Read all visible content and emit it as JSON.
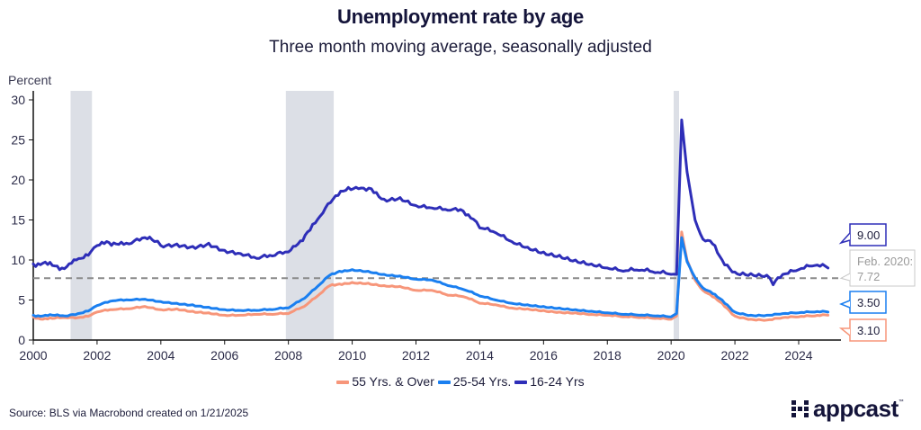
{
  "chart_data": {
    "type": "line",
    "title": "Unemployment rate by age",
    "subtitle": "Three month moving average, seasonally adjusted",
    "ylabel": "Percent",
    "xlabel": "",
    "xlim": [
      2000,
      2025
    ],
    "ylim": [
      0,
      30
    ],
    "x_ticks": [
      "2000",
      "2002",
      "2004",
      "2006",
      "2008",
      "2010",
      "2012",
      "2014",
      "2016",
      "2018",
      "2020",
      "2022",
      "2024"
    ],
    "y_ticks": [
      "0",
      "5",
      "10",
      "15",
      "20",
      "25",
      "30"
    ],
    "grid": false,
    "legend_position": "bottom-center",
    "recessions": [
      [
        2001.17,
        2001.84
      ],
      [
        2007.92,
        2009.42
      ],
      [
        2020.08,
        2020.25
      ]
    ],
    "reference_line": {
      "value": 7.72,
      "label_line1": "Feb. 2020:",
      "label_line2": "7.72",
      "color": "#8a8a8a"
    },
    "series": [
      {
        "name": "55 Yrs. & Over",
        "color": "#f7967a",
        "last_value_label": "3.10",
        "points": [
          [
            2000,
            2.9
          ],
          [
            2000.3,
            2.6
          ],
          [
            2000.6,
            2.7
          ],
          [
            2001,
            2.8
          ],
          [
            2001.4,
            2.8
          ],
          [
            2001.8,
            3.1
          ],
          [
            2002,
            3.5
          ],
          [
            2002.5,
            3.8
          ],
          [
            2003,
            3.9
          ],
          [
            2003.5,
            4.2
          ],
          [
            2004,
            3.8
          ],
          [
            2004.5,
            3.9
          ],
          [
            2005,
            3.6
          ],
          [
            2005.5,
            3.4
          ],
          [
            2006,
            3.1
          ],
          [
            2006.5,
            3.1
          ],
          [
            2007,
            3.2
          ],
          [
            2007.5,
            3.2
          ],
          [
            2008,
            3.3
          ],
          [
            2008.5,
            4.2
          ],
          [
            2009,
            5.8
          ],
          [
            2009.3,
            6.8
          ],
          [
            2009.6,
            7.0
          ],
          [
            2010,
            7.2
          ],
          [
            2010.5,
            7.1
          ],
          [
            2011,
            6.8
          ],
          [
            2011.5,
            6.7
          ],
          [
            2012,
            6.2
          ],
          [
            2012.5,
            6.2
          ],
          [
            2013,
            5.6
          ],
          [
            2013.5,
            5.4
          ],
          [
            2014,
            4.6
          ],
          [
            2014.5,
            4.4
          ],
          [
            2015,
            4.0
          ],
          [
            2015.5,
            3.9
          ],
          [
            2016,
            3.7
          ],
          [
            2016.5,
            3.5
          ],
          [
            2017,
            3.4
          ],
          [
            2017.5,
            3.2
          ],
          [
            2018,
            3.1
          ],
          [
            2018.5,
            2.9
          ],
          [
            2019,
            2.8
          ],
          [
            2019.5,
            2.7
          ],
          [
            2020,
            2.6
          ],
          [
            2020.17,
            3.0
          ],
          [
            2020.33,
            13.5
          ],
          [
            2020.5,
            10.0
          ],
          [
            2020.75,
            7.5
          ],
          [
            2021,
            6.2
          ],
          [
            2021.3,
            5.4
          ],
          [
            2021.6,
            4.6
          ],
          [
            2022,
            3.0
          ],
          [
            2022.5,
            2.6
          ],
          [
            2023,
            2.5
          ],
          [
            2023.5,
            2.8
          ],
          [
            2024,
            2.9
          ],
          [
            2024.5,
            3.0
          ],
          [
            2024.92,
            3.1
          ]
        ]
      },
      {
        "name": "25-54 Yrs.",
        "color": "#1a7ff0",
        "last_value_label": "3.50",
        "points": [
          [
            2000,
            3.1
          ],
          [
            2000.3,
            3.0
          ],
          [
            2000.6,
            3.1
          ],
          [
            2001,
            3.0
          ],
          [
            2001.4,
            3.3
          ],
          [
            2001.8,
            3.8
          ],
          [
            2002,
            4.3
          ],
          [
            2002.5,
            4.9
          ],
          [
            2003,
            5.0
          ],
          [
            2003.5,
            5.1
          ],
          [
            2004,
            4.8
          ],
          [
            2004.5,
            4.6
          ],
          [
            2005,
            4.4
          ],
          [
            2005.5,
            4.1
          ],
          [
            2006,
            3.8
          ],
          [
            2006.5,
            3.7
          ],
          [
            2007,
            3.7
          ],
          [
            2007.5,
            3.8
          ],
          [
            2008,
            4.0
          ],
          [
            2008.5,
            5.2
          ],
          [
            2009,
            7.0
          ],
          [
            2009.3,
            8.1
          ],
          [
            2009.6,
            8.6
          ],
          [
            2010,
            8.8
          ],
          [
            2010.5,
            8.6
          ],
          [
            2011,
            8.2
          ],
          [
            2011.5,
            8.0
          ],
          [
            2012,
            7.6
          ],
          [
            2012.5,
            7.5
          ],
          [
            2013,
            6.8
          ],
          [
            2013.5,
            6.3
          ],
          [
            2014,
            5.5
          ],
          [
            2014.5,
            5.0
          ],
          [
            2015,
            4.6
          ],
          [
            2015.5,
            4.4
          ],
          [
            2016,
            4.2
          ],
          [
            2016.5,
            4.0
          ],
          [
            2017,
            3.8
          ],
          [
            2017.5,
            3.6
          ],
          [
            2018,
            3.4
          ],
          [
            2018.5,
            3.2
          ],
          [
            2019,
            3.1
          ],
          [
            2019.5,
            3.0
          ],
          [
            2020,
            2.9
          ],
          [
            2020.17,
            3.3
          ],
          [
            2020.33,
            12.8
          ],
          [
            2020.5,
            9.8
          ],
          [
            2020.75,
            7.8
          ],
          [
            2021,
            6.5
          ],
          [
            2021.3,
            5.8
          ],
          [
            2021.6,
            5.0
          ],
          [
            2022,
            3.5
          ],
          [
            2022.5,
            3.1
          ],
          [
            2023,
            3.1
          ],
          [
            2023.5,
            3.3
          ],
          [
            2024,
            3.4
          ],
          [
            2024.5,
            3.5
          ],
          [
            2024.92,
            3.5
          ]
        ]
      },
      {
        "name": "16-24 Yrs",
        "color": "#2e2eb8",
        "last_value_label": "9.00",
        "points": [
          [
            2000,
            9.5
          ],
          [
            2000.3,
            9.6
          ],
          [
            2000.6,
            9.3
          ],
          [
            2000.9,
            9.0
          ],
          [
            2001.2,
            9.6
          ],
          [
            2001.5,
            10.2
          ],
          [
            2001.8,
            11.0
          ],
          [
            2002,
            11.8
          ],
          [
            2002.3,
            12.3
          ],
          [
            2002.6,
            12.0
          ],
          [
            2003,
            12.0
          ],
          [
            2003.5,
            12.8
          ],
          [
            2003.8,
            12.3
          ],
          [
            2004,
            11.8
          ],
          [
            2004.5,
            12.0
          ],
          [
            2005,
            11.7
          ],
          [
            2005.5,
            12.1
          ],
          [
            2006,
            11.2
          ],
          [
            2006.5,
            10.8
          ],
          [
            2007,
            10.2
          ],
          [
            2007.5,
            10.5
          ],
          [
            2007.9,
            11.0
          ],
          [
            2008,
            11.0
          ],
          [
            2008.3,
            12.0
          ],
          [
            2008.6,
            13.5
          ],
          [
            2009,
            15.5
          ],
          [
            2009.4,
            17.6
          ],
          [
            2009.8,
            18.7
          ],
          [
            2010.2,
            18.9
          ],
          [
            2010.6,
            18.9
          ],
          [
            2011,
            17.6
          ],
          [
            2011.5,
            17.8
          ],
          [
            2012,
            16.8
          ],
          [
            2012.5,
            16.5
          ],
          [
            2013,
            16.2
          ],
          [
            2013.4,
            16.3
          ],
          [
            2013.8,
            15.1
          ],
          [
            2014,
            14.0
          ],
          [
            2014.5,
            13.4
          ],
          [
            2015,
            12.3
          ],
          [
            2015.5,
            11.6
          ],
          [
            2016,
            11.0
          ],
          [
            2016.5,
            10.6
          ],
          [
            2017,
            10.0
          ],
          [
            2017.5,
            9.5
          ],
          [
            2018,
            9.0
          ],
          [
            2018.5,
            8.6
          ],
          [
            2019,
            8.7
          ],
          [
            2019.5,
            8.4
          ],
          [
            2020,
            8.2
          ],
          [
            2020.17,
            8.2
          ],
          [
            2020.33,
            27.5
          ],
          [
            2020.5,
            21.0
          ],
          [
            2020.75,
            15.0
          ],
          [
            2021,
            12.6
          ],
          [
            2021.3,
            12.0
          ],
          [
            2021.6,
            10.0
          ],
          [
            2022,
            8.5
          ],
          [
            2022.5,
            8.3
          ],
          [
            2023,
            8.1
          ],
          [
            2023.2,
            6.9
          ],
          [
            2023.5,
            8.2
          ],
          [
            2024,
            8.8
          ],
          [
            2024.5,
            9.3
          ],
          [
            2024.92,
            9.0
          ]
        ]
      }
    ]
  },
  "footer": {
    "source": "Source: BLS via Macrobond created on 1/21/2025",
    "logo_text": "appcast",
    "logo_tm": "™"
  }
}
